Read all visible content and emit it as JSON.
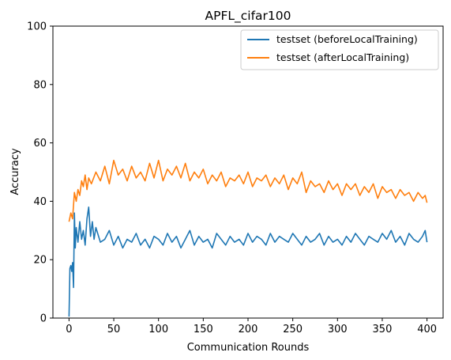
{
  "chart_data": {
    "type": "line",
    "title": "APFL_cifar100",
    "xlabel": "Communication Rounds",
    "ylabel": "Accuracy",
    "xlim": [
      -18,
      418
    ],
    "ylim": [
      0,
      100
    ],
    "xticks": [
      0,
      50,
      100,
      150,
      200,
      250,
      300,
      350,
      400
    ],
    "yticks": [
      0,
      20,
      40,
      60,
      80,
      100
    ],
    "legend_position": "top-right",
    "grid": false,
    "series": [
      {
        "name": "testset (beforeLocalTraining)",
        "color": "#1f77b4",
        "x": [
          0,
          1,
          2,
          3,
          4,
          5,
          6,
          7,
          8,
          10,
          12,
          14,
          16,
          18,
          20,
          22,
          24,
          26,
          28,
          30,
          35,
          40,
          45,
          50,
          55,
          60,
          65,
          70,
          75,
          80,
          85,
          90,
          95,
          100,
          105,
          110,
          115,
          120,
          125,
          130,
          135,
          140,
          145,
          150,
          155,
          160,
          165,
          170,
          175,
          180,
          185,
          190,
          195,
          200,
          205,
          210,
          215,
          220,
          225,
          230,
          235,
          240,
          245,
          250,
          255,
          260,
          265,
          270,
          275,
          280,
          285,
          290,
          295,
          300,
          305,
          310,
          315,
          320,
          325,
          330,
          335,
          340,
          345,
          350,
          355,
          360,
          365,
          370,
          375,
          380,
          385,
          390,
          395,
          398,
          400
        ],
        "y": [
          0.5,
          17,
          18,
          16,
          19,
          10.5,
          36,
          24,
          31,
          26,
          33,
          27,
          30,
          25,
          34,
          38,
          28,
          33,
          27,
          31,
          26,
          27,
          30,
          25,
          28,
          24,
          27,
          26,
          29,
          25,
          27,
          24,
          28,
          27,
          25,
          29,
          26,
          28,
          24,
          27,
          30,
          25,
          28,
          26,
          27,
          24,
          29,
          27,
          25,
          28,
          26,
          27,
          25,
          29,
          26,
          28,
          27,
          25,
          29,
          26,
          28,
          27,
          26,
          29,
          27,
          25,
          28,
          26,
          27,
          29,
          25,
          28,
          26,
          27,
          25,
          28,
          26,
          29,
          27,
          25,
          28,
          27,
          26,
          29,
          27,
          30,
          26,
          28,
          25,
          29,
          27,
          26,
          28,
          30,
          26
        ]
      },
      {
        "name": "testset (afterLocalTraining)",
        "color": "#ff7f0e",
        "x": [
          0,
          2,
          4,
          6,
          8,
          10,
          12,
          14,
          16,
          18,
          20,
          22,
          25,
          30,
          35,
          40,
          45,
          50,
          55,
          60,
          65,
          70,
          75,
          80,
          85,
          90,
          95,
          100,
          105,
          110,
          115,
          120,
          125,
          130,
          135,
          140,
          145,
          150,
          155,
          160,
          165,
          170,
          175,
          180,
          185,
          190,
          195,
          200,
          205,
          210,
          215,
          220,
          225,
          230,
          235,
          240,
          245,
          250,
          255,
          260,
          265,
          270,
          275,
          280,
          285,
          290,
          295,
          300,
          305,
          310,
          315,
          320,
          325,
          330,
          335,
          340,
          345,
          350,
          355,
          360,
          365,
          370,
          375,
          380,
          385,
          390,
          395,
          398,
          400
        ],
        "y": [
          33,
          36,
          34,
          43,
          40,
          44,
          42,
          47,
          45,
          49,
          44,
          48,
          46,
          50,
          47,
          52,
          46,
          54,
          49,
          51,
          47,
          52,
          48,
          50,
          47,
          53,
          48,
          54,
          47,
          51,
          49,
          52,
          48,
          53,
          47,
          50,
          48,
          51,
          46,
          49,
          47,
          50,
          45,
          48,
          47,
          49,
          46,
          50,
          45,
          48,
          47,
          49,
          45,
          48,
          46,
          49,
          44,
          48,
          46,
          50,
          43,
          47,
          45,
          46,
          43,
          47,
          44,
          46,
          42,
          46,
          44,
          46,
          42,
          45,
          43,
          46,
          41,
          45,
          43,
          44,
          41,
          44,
          42,
          43,
          40,
          43,
          41,
          42,
          39.5
        ]
      }
    ]
  }
}
